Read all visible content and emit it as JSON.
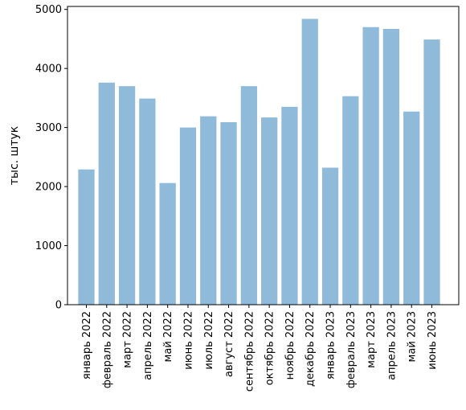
{
  "chart_data": {
    "type": "bar",
    "title": "",
    "xlabel": "",
    "ylabel": "тыс. штук",
    "ylim": [
      0,
      5050
    ],
    "yticks": [
      0,
      1000,
      2000,
      3000,
      4000,
      5000
    ],
    "grid": false,
    "legend": "none",
    "bar_color": "#8fbad9",
    "categories": [
      "январь 2022",
      "февраль 2022",
      "март 2022",
      "апрель 2022",
      "май 2022",
      "июнь 2022",
      "июль 2022",
      "август 2022",
      "сентябрь 2022",
      "октябрь 2022",
      "ноябрь 2022",
      "декабрь 2022",
      "январь 2023",
      "февраль 2023",
      "март 2023",
      "апрель 2023",
      "май 2023",
      "июнь 2023"
    ],
    "values": [
      2290,
      3760,
      3700,
      3490,
      2060,
      3000,
      3190,
      3090,
      3700,
      3170,
      3350,
      4840,
      2320,
      3530,
      4700,
      4670,
      3270,
      4490
    ]
  }
}
